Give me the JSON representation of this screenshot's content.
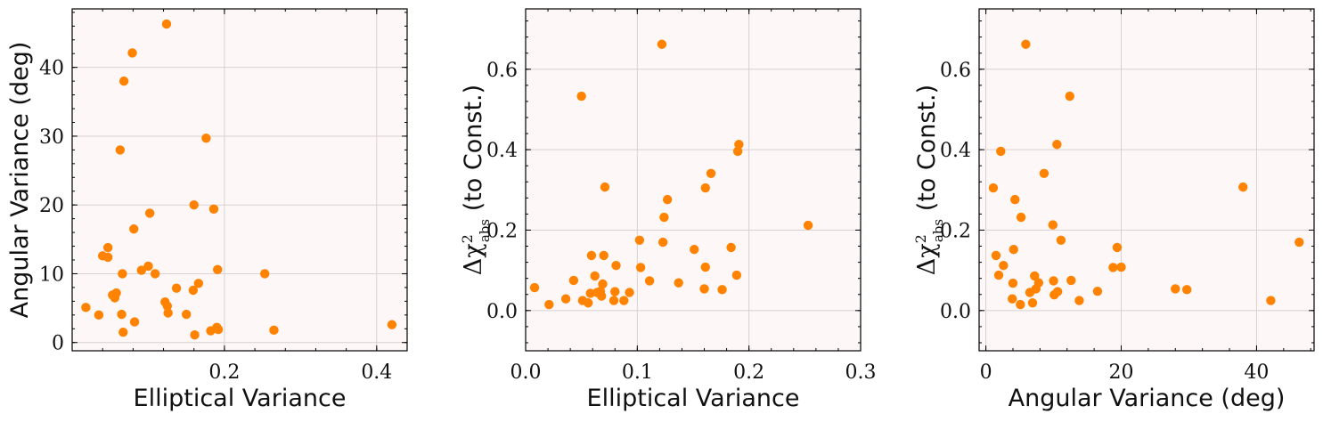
{
  "chart_data": [
    {
      "type": "scatter",
      "xlabel": "Elliptical Variance",
      "ylabel": "Angular Variance (deg)",
      "xlim": [
        0.0,
        0.44
      ],
      "ylim": [
        -1.2,
        48.5
      ],
      "xticks": [
        0.2,
        0.4
      ],
      "xtick_labels": [
        "0.2",
        "0.4"
      ],
      "yticks": [
        0,
        10,
        20,
        30,
        40
      ],
      "ytick_labels": [
        "0",
        "10",
        "20",
        "30",
        "40"
      ],
      "grid": true,
      "color": "#ff8200",
      "points": [
        {
          "x": 0.018,
          "y": 5.1
        },
        {
          "x": 0.035,
          "y": 4.0
        },
        {
          "x": 0.04,
          "y": 12.6
        },
        {
          "x": 0.047,
          "y": 12.4
        },
        {
          "x": 0.047,
          "y": 13.8
        },
        {
          "x": 0.053,
          "y": 6.9
        },
        {
          "x": 0.056,
          "y": 6.5
        },
        {
          "x": 0.058,
          "y": 7.2
        },
        {
          "x": 0.063,
          "y": 28.0
        },
        {
          "x": 0.065,
          "y": 4.1
        },
        {
          "x": 0.066,
          "y": 10.0
        },
        {
          "x": 0.067,
          "y": 1.5
        },
        {
          "x": 0.068,
          "y": 38.0
        },
        {
          "x": 0.079,
          "y": 42.1
        },
        {
          "x": 0.081,
          "y": 16.5
        },
        {
          "x": 0.082,
          "y": 3.0
        },
        {
          "x": 0.091,
          "y": 10.5
        },
        {
          "x": 0.1,
          "y": 11.1
        },
        {
          "x": 0.102,
          "y": 18.8
        },
        {
          "x": 0.109,
          "y": 10.0
        },
        {
          "x": 0.122,
          "y": 5.9
        },
        {
          "x": 0.124,
          "y": 46.3
        },
        {
          "x": 0.125,
          "y": 5.3
        },
        {
          "x": 0.126,
          "y": 4.3
        },
        {
          "x": 0.137,
          "y": 7.9
        },
        {
          "x": 0.15,
          "y": 4.1
        },
        {
          "x": 0.159,
          "y": 7.6
        },
        {
          "x": 0.16,
          "y": 20.0
        },
        {
          "x": 0.161,
          "y": 1.1
        },
        {
          "x": 0.166,
          "y": 8.6
        },
        {
          "x": 0.176,
          "y": 29.7
        },
        {
          "x": 0.182,
          "y": 1.7
        },
        {
          "x": 0.186,
          "y": 19.4
        },
        {
          "x": 0.19,
          "y": 2.2
        },
        {
          "x": 0.191,
          "y": 10.6
        },
        {
          "x": 0.192,
          "y": 1.9
        },
        {
          "x": 0.253,
          "y": 10.0
        },
        {
          "x": 0.265,
          "y": 1.8
        },
        {
          "x": 0.42,
          "y": 2.6
        }
      ]
    },
    {
      "type": "scatter",
      "xlabel": "Elliptical Variance",
      "ylabel_prefix": "Δχ",
      "ylabel_sup": "2",
      "ylabel_sub": "abs",
      "ylabel_suffix": " (to Const.)",
      "xlim": [
        0.0,
        0.3
      ],
      "ylim": [
        -0.1,
        0.75
      ],
      "xticks": [
        0.0,
        0.1,
        0.2,
        0.3
      ],
      "xtick_labels": [
        "0.0",
        "0.1",
        "0.2",
        "0.3"
      ],
      "yticks": [
        0.0,
        0.2,
        0.4,
        0.6
      ],
      "ytick_labels": [
        "0.0",
        "0.2",
        "0.4",
        "0.6"
      ],
      "grid": true,
      "color": "#ff8200",
      "points": [
        {
          "x": 0.008,
          "y": 0.057
        },
        {
          "x": 0.021,
          "y": 0.015
        },
        {
          "x": 0.036,
          "y": 0.029
        },
        {
          "x": 0.043,
          "y": 0.075
        },
        {
          "x": 0.05,
          "y": 0.533
        },
        {
          "x": 0.051,
          "y": 0.025
        },
        {
          "x": 0.056,
          "y": 0.019
        },
        {
          "x": 0.058,
          "y": 0.043
        },
        {
          "x": 0.059,
          "y": 0.137
        },
        {
          "x": 0.062,
          "y": 0.086
        },
        {
          "x": 0.064,
          "y": 0.045
        },
        {
          "x": 0.067,
          "y": 0.048
        },
        {
          "x": 0.068,
          "y": 0.036
        },
        {
          "x": 0.069,
          "y": 0.066
        },
        {
          "x": 0.07,
          "y": 0.137
        },
        {
          "x": 0.071,
          "y": 0.307
        },
        {
          "x": 0.079,
          "y": 0.025
        },
        {
          "x": 0.08,
          "y": 0.047
        },
        {
          "x": 0.081,
          "y": 0.112
        },
        {
          "x": 0.088,
          "y": 0.025
        },
        {
          "x": 0.093,
          "y": 0.045
        },
        {
          "x": 0.102,
          "y": 0.175
        },
        {
          "x": 0.103,
          "y": 0.107
        },
        {
          "x": 0.111,
          "y": 0.074
        },
        {
          "x": 0.122,
          "y": 0.662
        },
        {
          "x": 0.123,
          "y": 0.17
        },
        {
          "x": 0.124,
          "y": 0.232
        },
        {
          "x": 0.127,
          "y": 0.276
        },
        {
          "x": 0.137,
          "y": 0.069
        },
        {
          "x": 0.151,
          "y": 0.152
        },
        {
          "x": 0.16,
          "y": 0.054
        },
        {
          "x": 0.161,
          "y": 0.108
        },
        {
          "x": 0.161,
          "y": 0.305
        },
        {
          "x": 0.166,
          "y": 0.341
        },
        {
          "x": 0.176,
          "y": 0.052
        },
        {
          "x": 0.184,
          "y": 0.157
        },
        {
          "x": 0.189,
          "y": 0.088
        },
        {
          "x": 0.19,
          "y": 0.396
        },
        {
          "x": 0.191,
          "y": 0.413
        },
        {
          "x": 0.253,
          "y": 0.212
        }
      ]
    },
    {
      "type": "scatter",
      "xlabel": "Angular Variance (deg)",
      "ylabel_prefix": "Δχ",
      "ylabel_sup": "2",
      "ylabel_sub": "abs",
      "ylabel_suffix": " (to Const.)",
      "xlim": [
        -1.0,
        48.5
      ],
      "ylim": [
        -0.1,
        0.75
      ],
      "xticks": [
        0,
        20,
        40
      ],
      "xtick_labels": [
        "0",
        "20",
        "40"
      ],
      "yticks": [
        0.0,
        0.2,
        0.4,
        0.6
      ],
      "ytick_labels": [
        "0.0",
        "0.2",
        "0.4",
        "0.6"
      ],
      "grid": true,
      "color": "#ff8200",
      "points": [
        {
          "x": 1.1,
          "y": 0.305
        },
        {
          "x": 1.5,
          "y": 0.137
        },
        {
          "x": 1.9,
          "y": 0.088
        },
        {
          "x": 2.2,
          "y": 0.396
        },
        {
          "x": 2.6,
          "y": 0.112
        },
        {
          "x": 3.9,
          "y": 0.029
        },
        {
          "x": 4.0,
          "y": 0.068
        },
        {
          "x": 4.1,
          "y": 0.152
        },
        {
          "x": 4.3,
          "y": 0.276
        },
        {
          "x": 5.1,
          "y": 0.015
        },
        {
          "x": 5.2,
          "y": 0.232
        },
        {
          "x": 5.9,
          "y": 0.662
        },
        {
          "x": 6.5,
          "y": 0.045
        },
        {
          "x": 6.9,
          "y": 0.019
        },
        {
          "x": 7.2,
          "y": 0.086
        },
        {
          "x": 7.4,
          "y": 0.054
        },
        {
          "x": 7.8,
          "y": 0.069
        },
        {
          "x": 8.6,
          "y": 0.341
        },
        {
          "x": 9.9,
          "y": 0.213
        },
        {
          "x": 10.0,
          "y": 0.074
        },
        {
          "x": 10.1,
          "y": 0.039
        },
        {
          "x": 10.5,
          "y": 0.413
        },
        {
          "x": 10.6,
          "y": 0.047
        },
        {
          "x": 11.1,
          "y": 0.175
        },
        {
          "x": 12.4,
          "y": 0.533
        },
        {
          "x": 12.6,
          "y": 0.075
        },
        {
          "x": 13.8,
          "y": 0.025
        },
        {
          "x": 16.5,
          "y": 0.048
        },
        {
          "x": 18.8,
          "y": 0.107
        },
        {
          "x": 19.4,
          "y": 0.157
        },
        {
          "x": 20.0,
          "y": 0.108
        },
        {
          "x": 28.0,
          "y": 0.054
        },
        {
          "x": 29.7,
          "y": 0.052
        },
        {
          "x": 38.0,
          "y": 0.307
        },
        {
          "x": 42.1,
          "y": 0.025
        },
        {
          "x": 46.3,
          "y": 0.17
        }
      ]
    }
  ]
}
